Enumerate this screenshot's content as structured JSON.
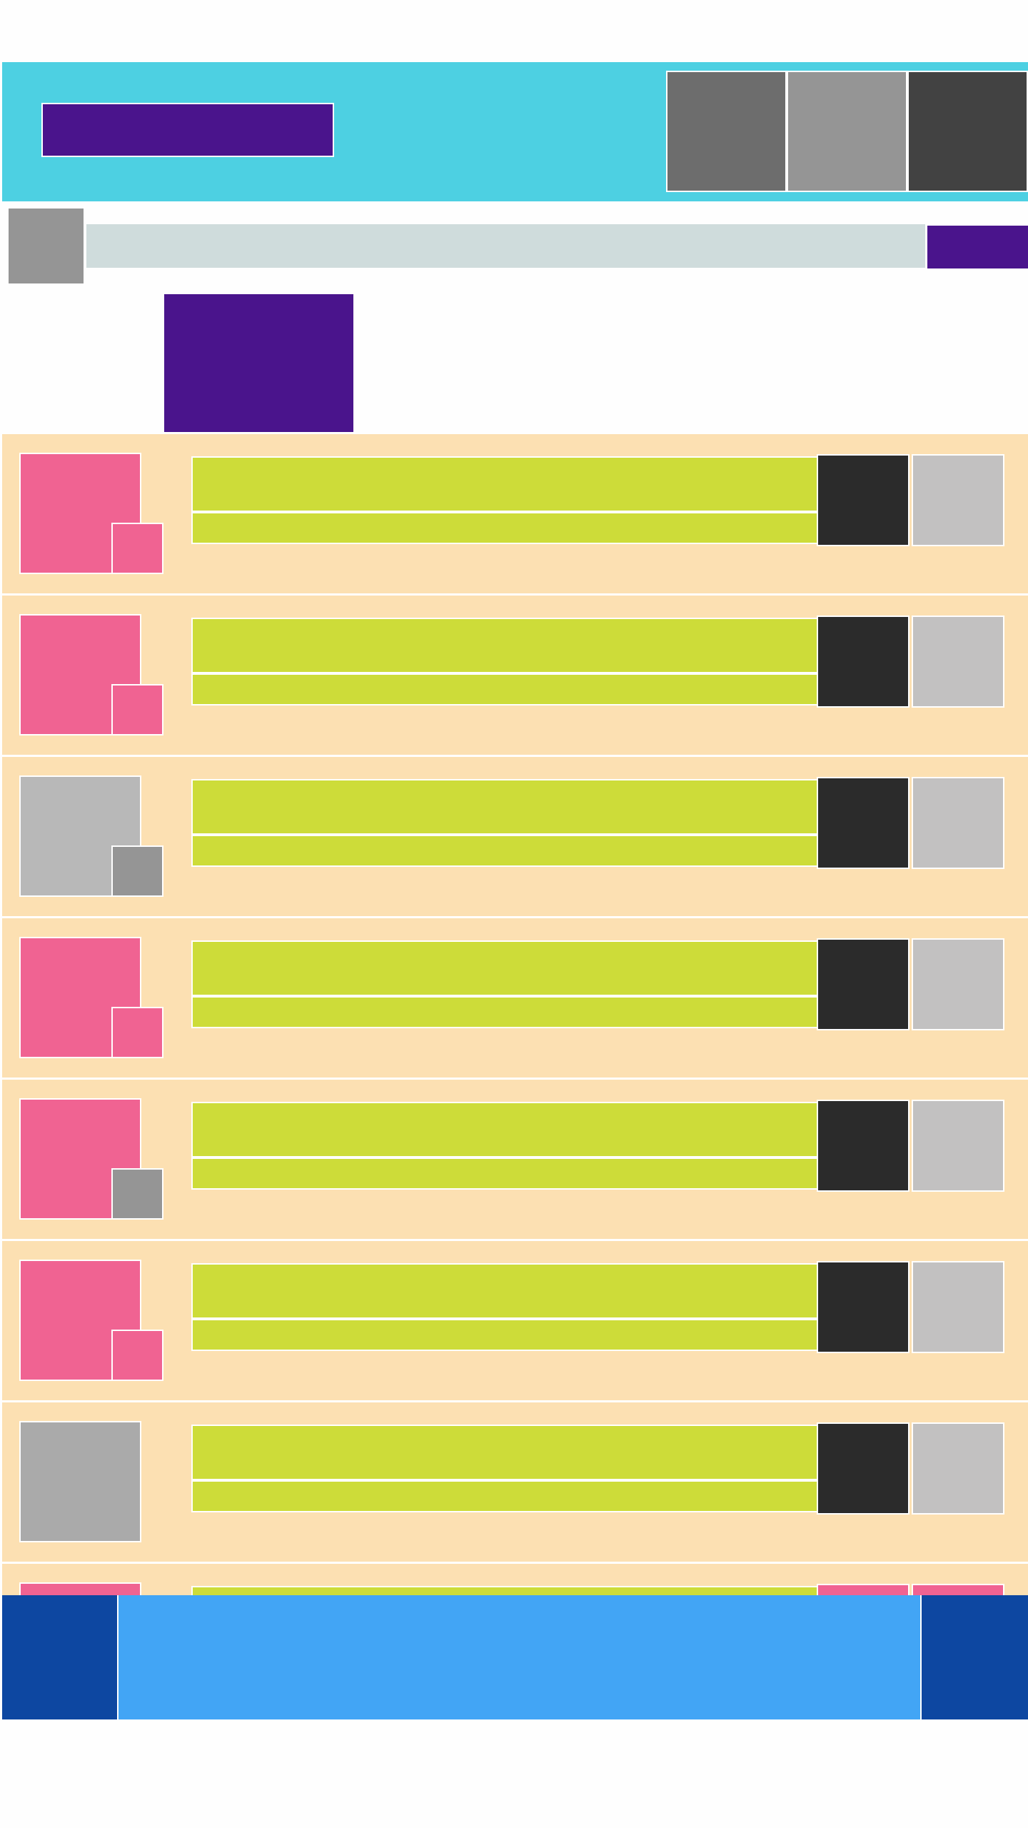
{
  "colors": {
    "header_background": "#4dd0e2",
    "primary": "#4a148c",
    "search_field": "#cfdcdc",
    "list_item_background": "#fce0b2",
    "item_text_block": "#cddc39",
    "thumbnail_pink": "#f06392",
    "action_dark": "#2b2b2b",
    "action_light": "#c2c1c1",
    "bottom_bar": "#0d47a1",
    "bottom_bar_center": "#42a5f5"
  },
  "header": {
    "brand_label": "",
    "actions": [
      {
        "label": "",
        "icon": "placeholder-block"
      },
      {
        "label": "",
        "icon": "placeholder-block"
      },
      {
        "label": "",
        "icon": "placeholder-block"
      }
    ]
  },
  "search": {
    "value": "",
    "placeholder": "",
    "button_label": ""
  },
  "feature": {
    "label": ""
  },
  "list": {
    "items": [
      {
        "title": "",
        "subtitle": "",
        "thumb": "pink",
        "badge": "pink"
      },
      {
        "title": "",
        "subtitle": "",
        "thumb": "pink",
        "badge": "pink"
      },
      {
        "title": "",
        "subtitle": "",
        "thumb": "grey",
        "badge": "grey"
      },
      {
        "title": "",
        "subtitle": "",
        "thumb": "pink",
        "badge": "pink"
      },
      {
        "title": "",
        "subtitle": "",
        "thumb": "pink",
        "badge": "grey"
      },
      {
        "title": "",
        "subtitle": "",
        "thumb": "pink",
        "badge": "pink"
      },
      {
        "title": "",
        "subtitle": "",
        "thumb": "dgrey",
        "badge": ""
      },
      {
        "title": "",
        "subtitle": "",
        "thumb": "pink",
        "badge": ""
      }
    ]
  },
  "bottom_bar": {
    "left_label": "",
    "center_label": "",
    "right_label": ""
  }
}
